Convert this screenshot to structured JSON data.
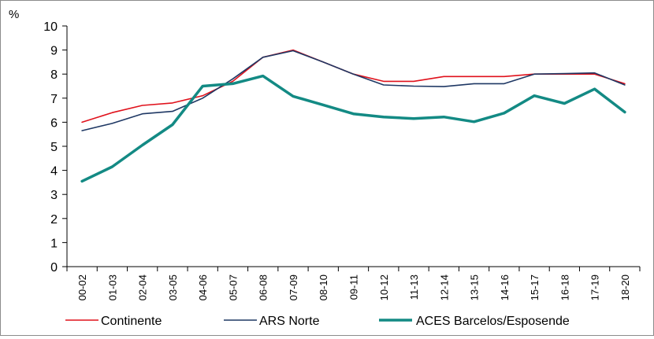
{
  "chart_data": {
    "type": "line",
    "title": "",
    "xlabel": "",
    "ylabel": "%",
    "ylim": [
      0,
      10
    ],
    "yticks": [
      0,
      1,
      2,
      3,
      4,
      5,
      6,
      7,
      8,
      9,
      10
    ],
    "grid": false,
    "legend_position": "bottom",
    "categories": [
      "00-02",
      "01-03",
      "02-04",
      "03-05",
      "04-06",
      "05-07",
      "06-08",
      "07-09",
      "08-10",
      "09-11",
      "10-12",
      "11-13",
      "12-14",
      "13-15",
      "14-16",
      "15-17",
      "16-18",
      "17-19",
      "18-20"
    ],
    "series": [
      {
        "name": "Continente",
        "color": "#e0121c",
        "line_weight": "thin",
        "values": [
          6.0,
          6.4,
          6.7,
          6.8,
          7.1,
          7.7,
          8.7,
          9.0,
          8.5,
          8.0,
          7.7,
          7.7,
          7.9,
          7.9,
          7.9,
          8.0,
          8.0,
          8.0,
          7.6
        ]
      },
      {
        "name": "ARS Norte",
        "color": "#1f3864",
        "line_weight": "thin",
        "values": [
          5.65,
          5.95,
          6.35,
          6.45,
          7.0,
          7.8,
          8.7,
          8.97,
          8.5,
          8.0,
          7.55,
          7.5,
          7.48,
          7.6,
          7.6,
          8.0,
          8.02,
          8.05,
          7.55
        ]
      },
      {
        "name": "ACES Barcelos/Esposende",
        "color": "#138a84",
        "line_weight": "thick",
        "values": [
          3.55,
          4.15,
          5.05,
          5.9,
          7.5,
          7.6,
          7.92,
          7.08,
          6.72,
          6.35,
          6.22,
          6.15,
          6.22,
          6.02,
          6.38,
          7.1,
          6.78,
          7.38,
          6.42
        ]
      }
    ]
  }
}
